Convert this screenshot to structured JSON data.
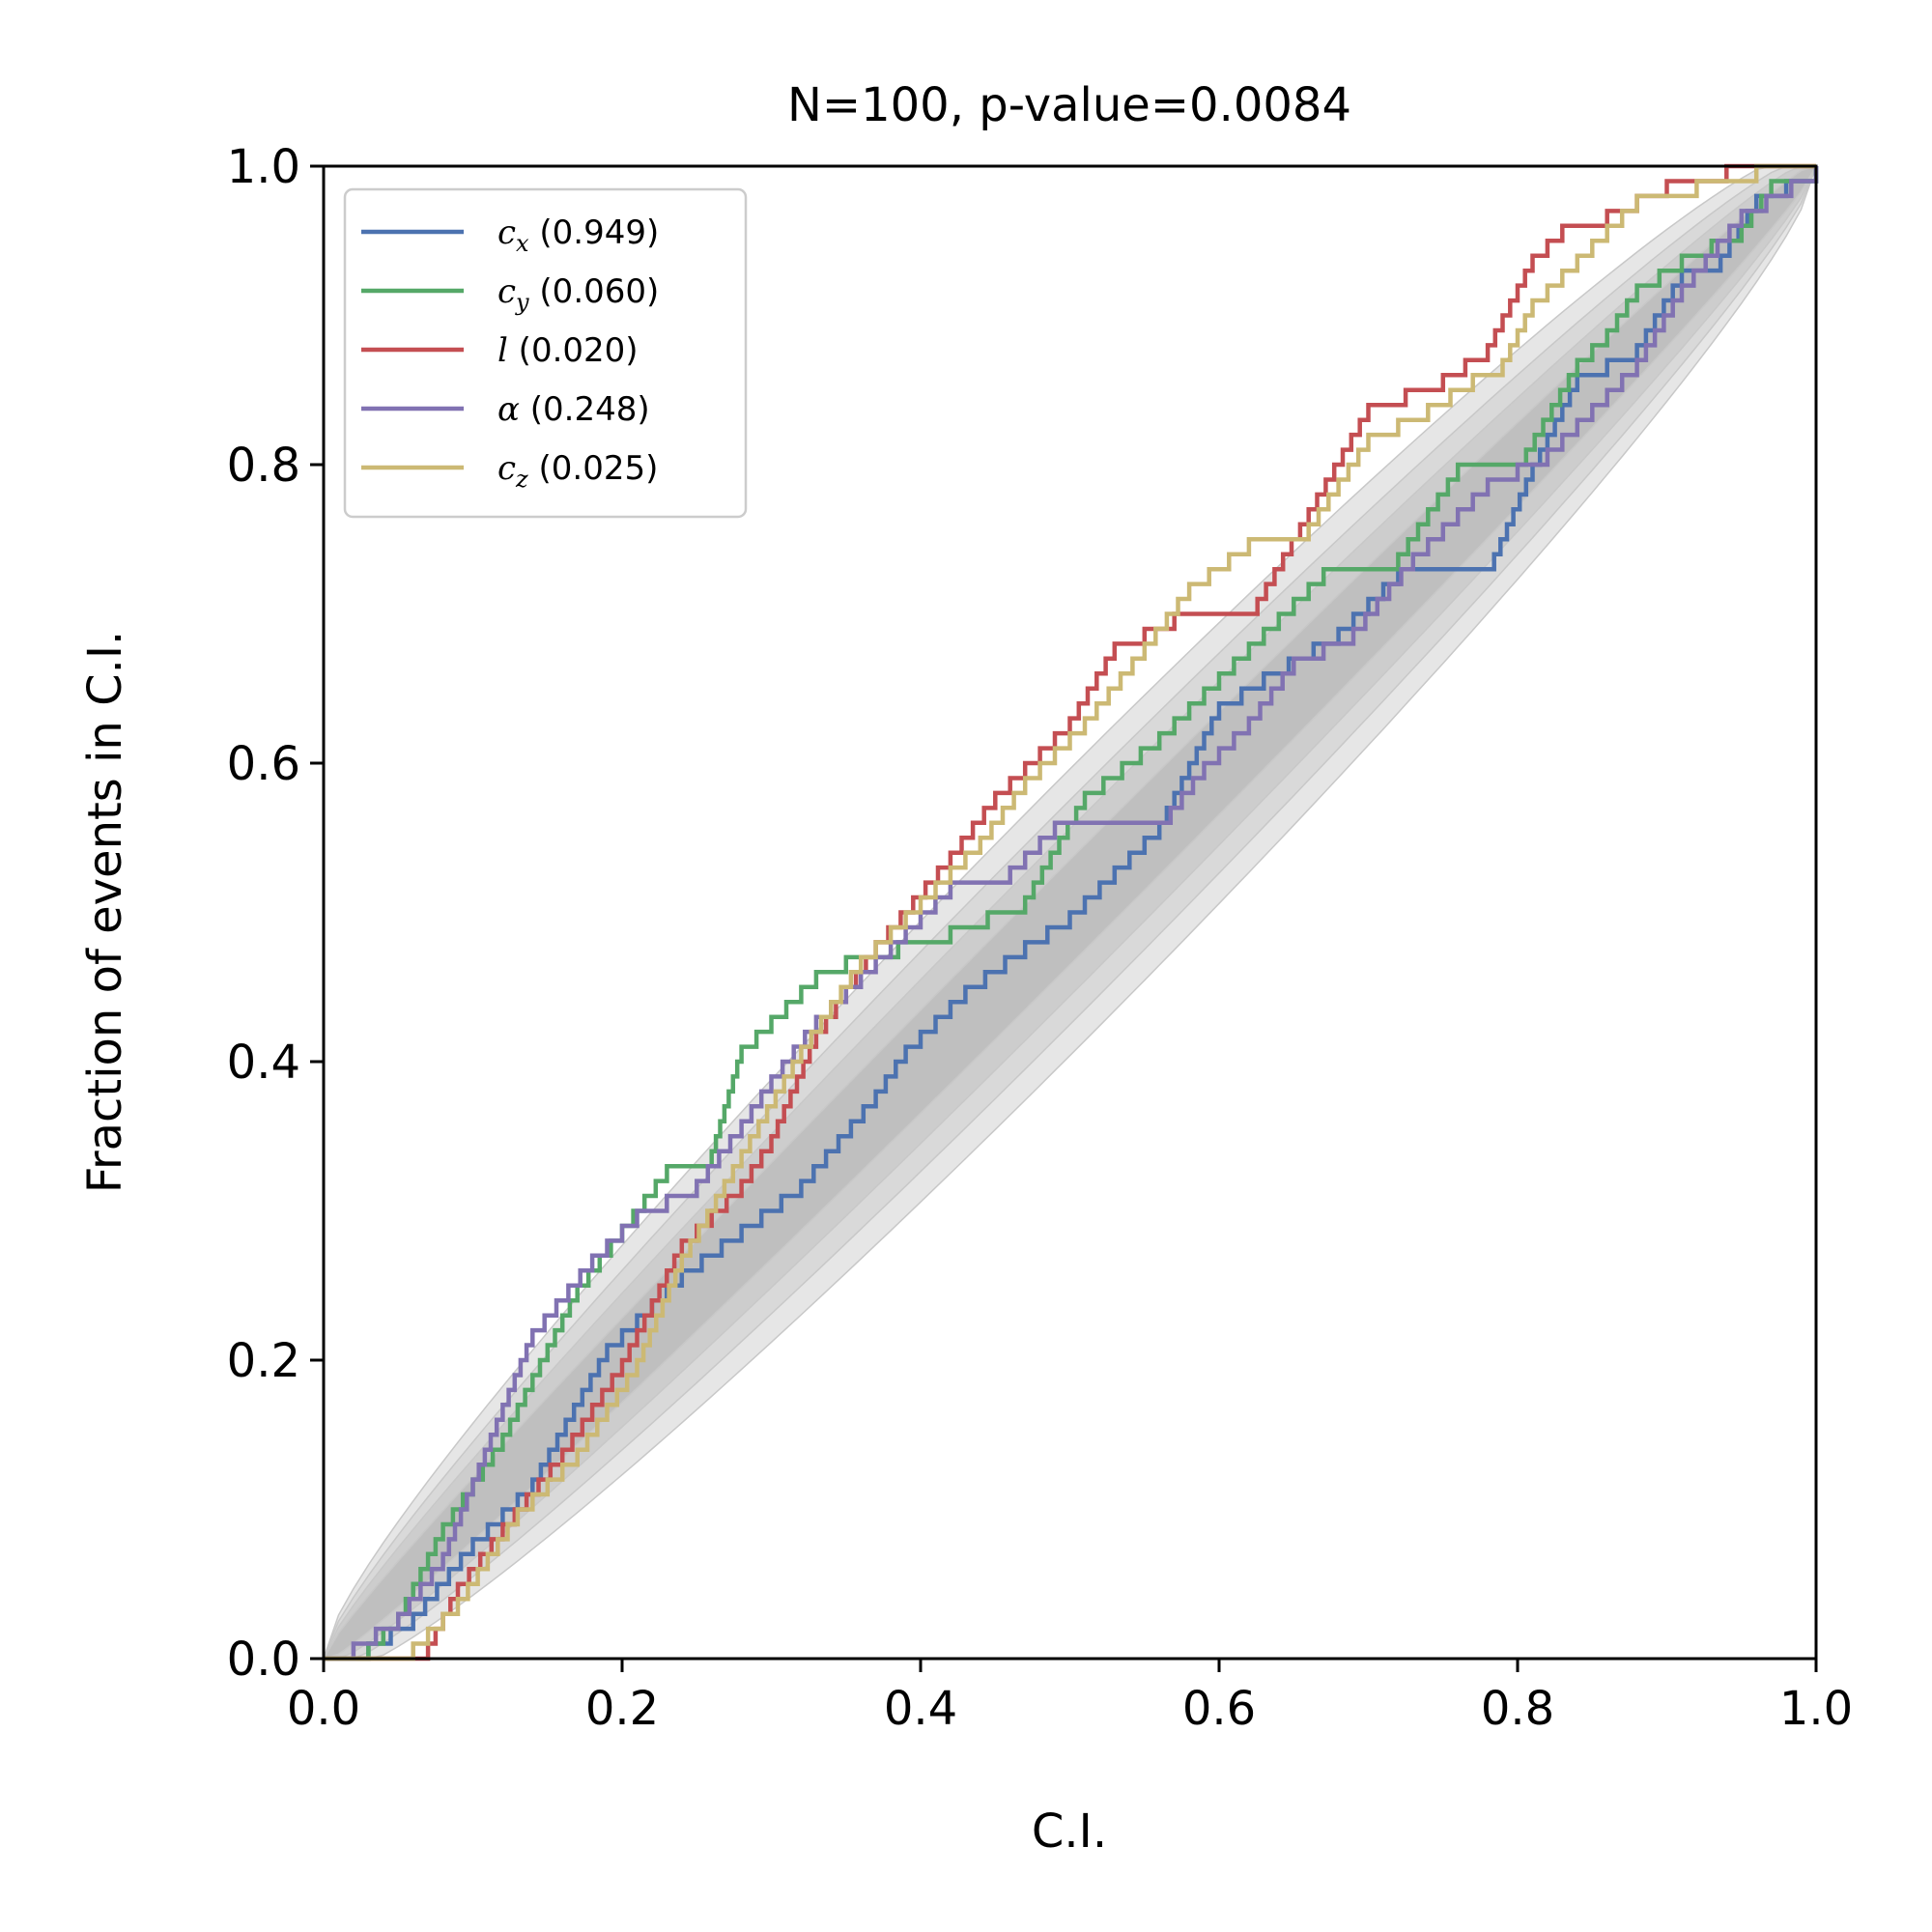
{
  "chart_data": {
    "type": "line",
    "title": "N=100, p-value=0.0084",
    "xlabel": "C.I.",
    "ylabel": "Fraction of events in C.I.",
    "xlim": [
      0,
      1
    ],
    "ylim": [
      0,
      1
    ],
    "xticks": [
      "0.0",
      "0.2",
      "0.4",
      "0.6",
      "0.8",
      "1.0"
    ],
    "yticks": [
      "0.0",
      "0.2",
      "0.4",
      "0.6",
      "0.8",
      "1.0"
    ],
    "grid": false,
    "legend_position": "top-left",
    "confidence_bands": [
      {
        "width": 0.06,
        "color": "#e6e6e6"
      },
      {
        "width": 0.047,
        "color": "#d9d9d9"
      },
      {
        "width": 0.035,
        "color": "#cdcdcd"
      },
      {
        "width": 0.022,
        "color": "#bfbfbf"
      }
    ],
    "series": [
      {
        "symbol": "c",
        "subscript": "x",
        "stat": " (0.949)",
        "color": "#4c72b0",
        "points": [
          [
            0,
            0
          ],
          [
            0.02,
            0
          ],
          [
            0.03,
            0.01
          ],
          [
            0.06,
            0.03
          ],
          [
            0.1,
            0.08
          ],
          [
            0.14,
            0.12
          ],
          [
            0.19,
            0.21
          ],
          [
            0.24,
            0.26
          ],
          [
            0.28,
            0.29
          ],
          [
            0.32,
            0.32
          ],
          [
            0.37,
            0.38
          ],
          [
            0.39,
            0.41
          ],
          [
            0.43,
            0.45
          ],
          [
            0.47,
            0.48
          ],
          [
            0.5,
            0.5
          ],
          [
            0.53,
            0.53
          ],
          [
            0.56,
            0.56
          ],
          [
            0.6,
            0.64
          ],
          [
            0.63,
            0.66
          ],
          [
            0.68,
            0.69
          ],
          [
            0.72,
            0.73
          ],
          [
            0.78,
            0.73
          ],
          [
            0.81,
            0.8
          ],
          [
            0.84,
            0.86
          ],
          [
            0.88,
            0.88
          ],
          [
            0.91,
            0.93
          ],
          [
            0.93,
            0.93
          ],
          [
            0.96,
            0.98
          ],
          [
            1,
            1
          ]
        ]
      },
      {
        "symbol": "c",
        "subscript": "y",
        "stat": " (0.060)",
        "color": "#55a868",
        "points": [
          [
            0,
            0
          ],
          [
            0.02,
            0
          ],
          [
            0.05,
            0.03
          ],
          [
            0.08,
            0.09
          ],
          [
            0.12,
            0.15
          ],
          [
            0.17,
            0.25
          ],
          [
            0.2,
            0.29
          ],
          [
            0.23,
            0.33
          ],
          [
            0.26,
            0.34
          ],
          [
            0.28,
            0.41
          ],
          [
            0.3,
            0.43
          ],
          [
            0.33,
            0.46
          ],
          [
            0.35,
            0.47
          ],
          [
            0.42,
            0.49
          ],
          [
            0.47,
            0.51
          ],
          [
            0.51,
            0.58
          ],
          [
            0.56,
            0.62
          ],
          [
            0.6,
            0.66
          ],
          [
            0.64,
            0.7
          ],
          [
            0.67,
            0.73
          ],
          [
            0.72,
            0.74
          ],
          [
            0.76,
            0.8
          ],
          [
            0.8,
            0.8
          ],
          [
            0.84,
            0.87
          ],
          [
            0.86,
            0.89
          ],
          [
            0.88,
            0.92
          ],
          [
            0.91,
            0.94
          ],
          [
            0.95,
            0.96
          ],
          [
            0.97,
            0.99
          ],
          [
            1,
            1
          ]
        ]
      },
      {
        "symbol": "l",
        "subscript": "",
        "stat": " (0.020)",
        "color": "#c44e52",
        "points": [
          [
            0,
            0
          ],
          [
            0.03,
            0
          ],
          [
            0.07,
            0.01
          ],
          [
            0.09,
            0.05
          ],
          [
            0.12,
            0.09
          ],
          [
            0.16,
            0.14
          ],
          [
            0.2,
            0.2
          ],
          [
            0.24,
            0.28
          ],
          [
            0.28,
            0.32
          ],
          [
            0.3,
            0.35
          ],
          [
            0.33,
            0.42
          ],
          [
            0.37,
            0.48
          ],
          [
            0.42,
            0.54
          ],
          [
            0.45,
            0.58
          ],
          [
            0.5,
            0.63
          ],
          [
            0.53,
            0.68
          ],
          [
            0.57,
            0.7
          ],
          [
            0.62,
            0.7
          ],
          [
            0.66,
            0.77
          ],
          [
            0.7,
            0.84
          ],
          [
            0.75,
            0.86
          ],
          [
            0.78,
            0.88
          ],
          [
            0.81,
            0.94
          ],
          [
            0.83,
            0.96
          ],
          [
            0.86,
            0.97
          ],
          [
            0.9,
            0.99
          ],
          [
            0.94,
            1
          ],
          [
            1,
            1
          ]
        ]
      },
      {
        "symbol": "α",
        "subscript": "",
        "stat": " (0.248)",
        "color": "#8172b2",
        "points": [
          [
            0,
            0
          ],
          [
            0.02,
            0.01
          ],
          [
            0.05,
            0.03
          ],
          [
            0.08,
            0.07
          ],
          [
            0.1,
            0.12
          ],
          [
            0.12,
            0.17
          ],
          [
            0.14,
            0.22
          ],
          [
            0.18,
            0.27
          ],
          [
            0.21,
            0.3
          ],
          [
            0.25,
            0.32
          ],
          [
            0.28,
            0.36
          ],
          [
            0.3,
            0.39
          ],
          [
            0.33,
            0.43
          ],
          [
            0.37,
            0.47
          ],
          [
            0.42,
            0.52
          ],
          [
            0.46,
            0.53
          ],
          [
            0.49,
            0.56
          ],
          [
            0.56,
            0.56
          ],
          [
            0.59,
            0.6
          ],
          [
            0.62,
            0.63
          ],
          [
            0.65,
            0.67
          ],
          [
            0.69,
            0.69
          ],
          [
            0.73,
            0.74
          ],
          [
            0.78,
            0.79
          ],
          [
            0.82,
            0.81
          ],
          [
            0.85,
            0.84
          ],
          [
            0.88,
            0.87
          ],
          [
            0.91,
            0.92
          ],
          [
            0.95,
            0.97
          ],
          [
            1,
            1
          ]
        ]
      },
      {
        "symbol": "c",
        "subscript": "z",
        "stat": " (0.025)",
        "color": "#ccb974",
        "points": [
          [
            0,
            0
          ],
          [
            0.02,
            0
          ],
          [
            0.06,
            0.01
          ],
          [
            0.09,
            0.04
          ],
          [
            0.13,
            0.1
          ],
          [
            0.17,
            0.14
          ],
          [
            0.21,
            0.2
          ],
          [
            0.24,
            0.27
          ],
          [
            0.28,
            0.34
          ],
          [
            0.32,
            0.41
          ],
          [
            0.36,
            0.47
          ],
          [
            0.4,
            0.51
          ],
          [
            0.44,
            0.55
          ],
          [
            0.47,
            0.59
          ],
          [
            0.51,
            0.63
          ],
          [
            0.55,
            0.68
          ],
          [
            0.58,
            0.72
          ],
          [
            0.62,
            0.75
          ],
          [
            0.66,
            0.76
          ],
          [
            0.7,
            0.82
          ],
          [
            0.74,
            0.84
          ],
          [
            0.77,
            0.86
          ],
          [
            0.79,
            0.87
          ],
          [
            0.81,
            0.91
          ],
          [
            0.84,
            0.94
          ],
          [
            0.88,
            0.98
          ],
          [
            0.92,
            0.99
          ],
          [
            0.96,
            1
          ],
          [
            1,
            1
          ]
        ]
      }
    ]
  }
}
